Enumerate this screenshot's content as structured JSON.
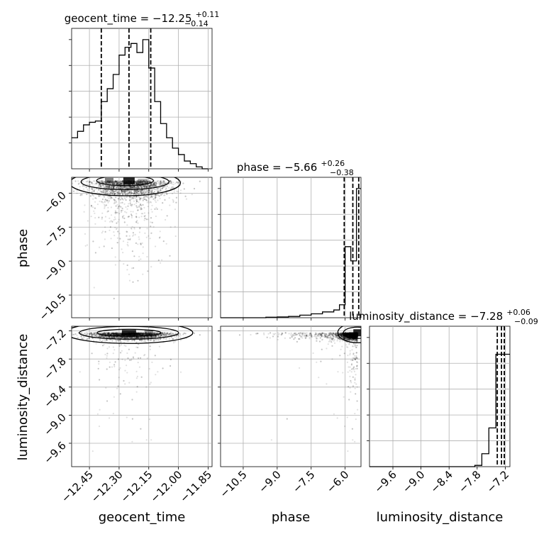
{
  "chart_data": {
    "type": "corner",
    "parameters": [
      "geocent_time",
      "phase",
      "luminosity_distance"
    ],
    "xlabels": [
      "geocent_time",
      "phase",
      "luminosity_distance"
    ],
    "ylabels": [
      "",
      "phase",
      "luminosity_distance"
    ],
    "ranges": [
      [
        -12.54,
        -11.83
      ],
      [
        -11.5,
        -5.3
      ],
      [
        -10.1,
        -7.1
      ]
    ],
    "ticks": {
      "geocent_time": [
        "−12.45",
        "−12.30",
        "−12.15",
        "−12.00",
        "−11.85"
      ],
      "geocent_time_values": [
        -12.45,
        -12.3,
        -12.15,
        -12.0,
        -11.85
      ],
      "phase": [
        "−10.5",
        "−9.0",
        "−7.5",
        "−6.0"
      ],
      "phase_values": [
        -10.5,
        -9.0,
        -7.5,
        -6.0
      ],
      "luminosity_distance": [
        "−9.6",
        "−9.0",
        "−8.4",
        "−7.8",
        "−7.2"
      ],
      "luminosity_distance_values": [
        -9.6,
        -9.0,
        -8.4,
        -7.8,
        -7.2
      ]
    },
    "titles": [
      {
        "name": "geocent_time",
        "median": "−12.25",
        "plus": "+0.11",
        "minus": "−0.14"
      },
      {
        "name": "phase",
        "median": "−5.66",
        "plus": "+0.26",
        "minus": "−0.38"
      },
      {
        "name": "luminosity_distance",
        "median": "−7.28",
        "plus": "+0.06",
        "minus": "−0.09"
      }
    ],
    "quantiles": {
      "geocent_time": [
        -12.39,
        -12.25,
        -12.14
      ],
      "phase": [
        -6.04,
        -5.66,
        -5.4
      ],
      "luminosity_distance": [
        -7.37,
        -7.28,
        -7.22
      ]
    },
    "hist_geocent_time": {
      "edges": [
        -12.54,
        -12.51,
        -12.48,
        -12.45,
        -12.42,
        -12.39,
        -12.36,
        -12.33,
        -12.3,
        -12.27,
        -12.24,
        -12.21,
        -12.18,
        -12.15,
        -12.12,
        -12.09,
        -12.06,
        -12.03,
        -12.0,
        -11.97,
        -11.94,
        -11.91,
        -11.88,
        -11.85
      ],
      "counts": [
        0.24,
        0.29,
        0.34,
        0.36,
        0.37,
        0.52,
        0.62,
        0.73,
        0.88,
        0.94,
        0.97,
        0.9,
        1.0,
        0.78,
        0.52,
        0.35,
        0.24,
        0.16,
        0.11,
        0.06,
        0.04,
        0.015,
        0.0
      ]
    },
    "hist_phase": {
      "edges": [
        -11.5,
        -11.0,
        -10.5,
        -10.0,
        -9.5,
        -9.0,
        -8.5,
        -8.0,
        -7.5,
        -7.0,
        -6.5,
        -6.25,
        -6.0,
        -5.75,
        -5.5,
        -5.3
      ],
      "counts": [
        0.0,
        0.0,
        0.0,
        0.0,
        0.004,
        0.006,
        0.01,
        0.02,
        0.03,
        0.045,
        0.06,
        0.1,
        0.55,
        0.44,
        1.0
      ]
    },
    "hist_luminosity_distance": {
      "edges": [
        -10.1,
        -9.8,
        -9.5,
        -9.2,
        -8.9,
        -8.6,
        -8.3,
        -8.0,
        -7.85,
        -7.7,
        -7.55,
        -7.4,
        -7.25,
        -7.1
      ],
      "counts": [
        0.0,
        0.0,
        0.0,
        0.0,
        0.0,
        0.0,
        0.0,
        0.0,
        0.01,
        0.1,
        0.3,
        0.87,
        0.87
      ]
    }
  }
}
